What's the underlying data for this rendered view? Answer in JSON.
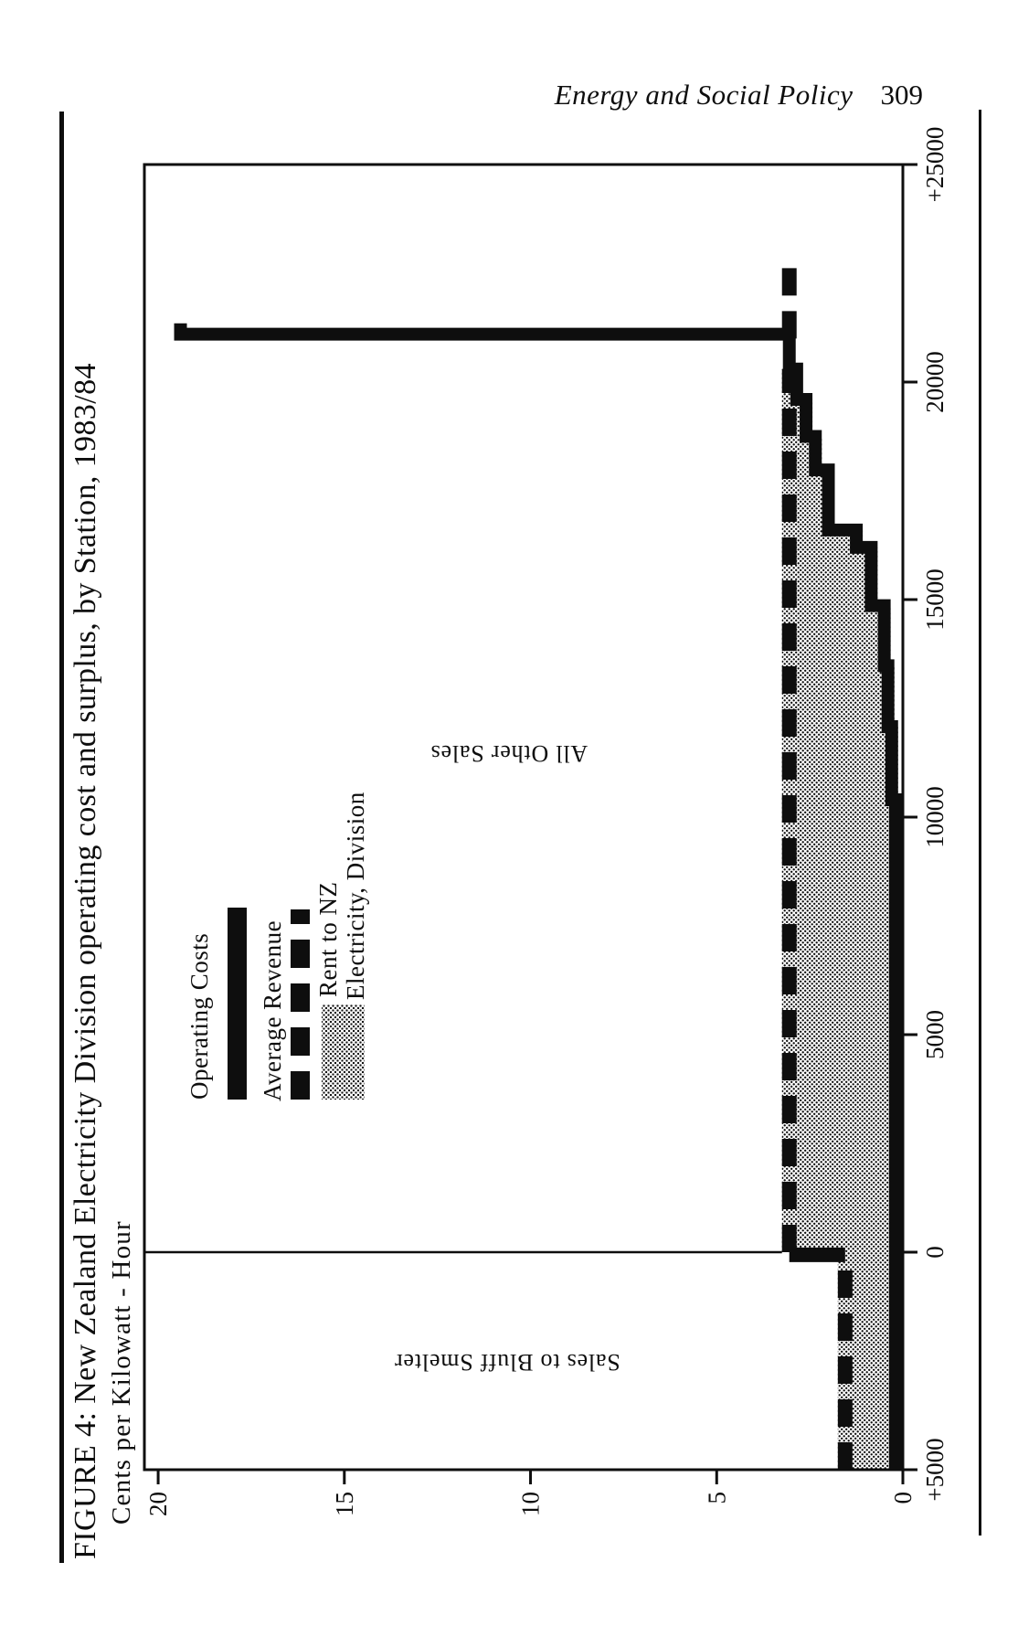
{
  "colors": {
    "ink": "#0e0e0e",
    "paper": "#ffffff"
  },
  "header": {
    "journal": "Energy and Social Policy",
    "page_number": "309"
  },
  "figure": {
    "title": "FIGURE 4: New Zealand Electricity Division operating cost and surplus, by Station, 1983/84",
    "subtitle": "Cents per Kilowatt - Hour",
    "labels": {
      "bluff": "Sales to Bluff Smelter",
      "other": "All Other Sales"
    },
    "legend": {
      "operating_costs": "Operating Costs",
      "average_revenue": "Average Revenue",
      "rent_line1": "Rent to NZ",
      "rent_line2": "Electricity, Division"
    }
  },
  "chart_data": {
    "type": "area",
    "title": "FIGURE 4: New Zealand Electricity Division operating cost and surplus, by Station, 1983/84",
    "xlabel": "",
    "ylabel": "Cents per Kilowatt - Hour",
    "xlim": [
      -5000,
      25000
    ],
    "ylim": [
      0,
      20.37
    ],
    "grid": false,
    "legend_position": "upper-middle-left",
    "xticks": [
      {
        "v": -5000,
        "label": "+5000"
      },
      {
        "v": 0,
        "label": "0"
      },
      {
        "v": 5000,
        "label": "5000"
      },
      {
        "v": 10000,
        "label": "10000"
      },
      {
        "v": 15000,
        "label": "15000"
      },
      {
        "v": 20000,
        "label": "20000"
      },
      {
        "v": 25000,
        "label": "+25000"
      }
    ],
    "yticks": [
      {
        "v": 0,
        "label": "0"
      },
      {
        "v": 5,
        "label": "5"
      },
      {
        "v": 10,
        "label": "10"
      },
      {
        "v": 15,
        "label": "15"
      },
      {
        "v": 20,
        "label": "20"
      }
    ],
    "divider_x": 0,
    "series": {
      "operating_costs": {
        "name": "Operating Costs",
        "style": "thick solid step line",
        "points": [
          [
            -5000,
            0.2
          ],
          [
            10400,
            0.2
          ],
          [
            10400,
            0.3
          ],
          [
            12080,
            0.3
          ],
          [
            12080,
            0.4
          ],
          [
            13480,
            0.4
          ],
          [
            13480,
            0.5
          ],
          [
            14860,
            0.5
          ],
          [
            14860,
            0.85
          ],
          [
            16200,
            0.85
          ],
          [
            16200,
            1.25
          ],
          [
            16600,
            1.25
          ],
          [
            16600,
            2.0
          ],
          [
            17980,
            2.0
          ],
          [
            17980,
            2.35
          ],
          [
            18750,
            2.35
          ],
          [
            18750,
            2.6
          ],
          [
            19600,
            2.6
          ],
          [
            19600,
            2.85
          ],
          [
            20300,
            2.85
          ],
          [
            20300,
            3.05
          ],
          [
            21100,
            3.05
          ],
          [
            21100,
            19.4
          ],
          [
            21350,
            19.4
          ]
        ]
      },
      "average_revenue": {
        "name": "Average Revenue",
        "style": "thick dashed line",
        "segments": [
          {
            "x0": -5000,
            "x1": -150,
            "c": 1.55
          },
          {
            "x0": 0,
            "x1": 20300,
            "c": 3.05
          },
          {
            "x0": 21000,
            "x1": 22750,
            "c": 3.05
          }
        ],
        "step_connector": {
          "v": -60,
          "from": 1.55,
          "to": 3.05
        }
      },
      "rent": {
        "name": "Rent to NZ Electricity, Division",
        "style": "stippled area between operating cost line and average revenue line",
        "regions": [
          {
            "x0": -5000,
            "x1": 0,
            "top": 1.55,
            "label": "Sales to Bluff Smelter"
          },
          {
            "x0": 0,
            "x1": 20300,
            "top": 3.05,
            "label": "All Other Sales"
          }
        ]
      }
    }
  }
}
